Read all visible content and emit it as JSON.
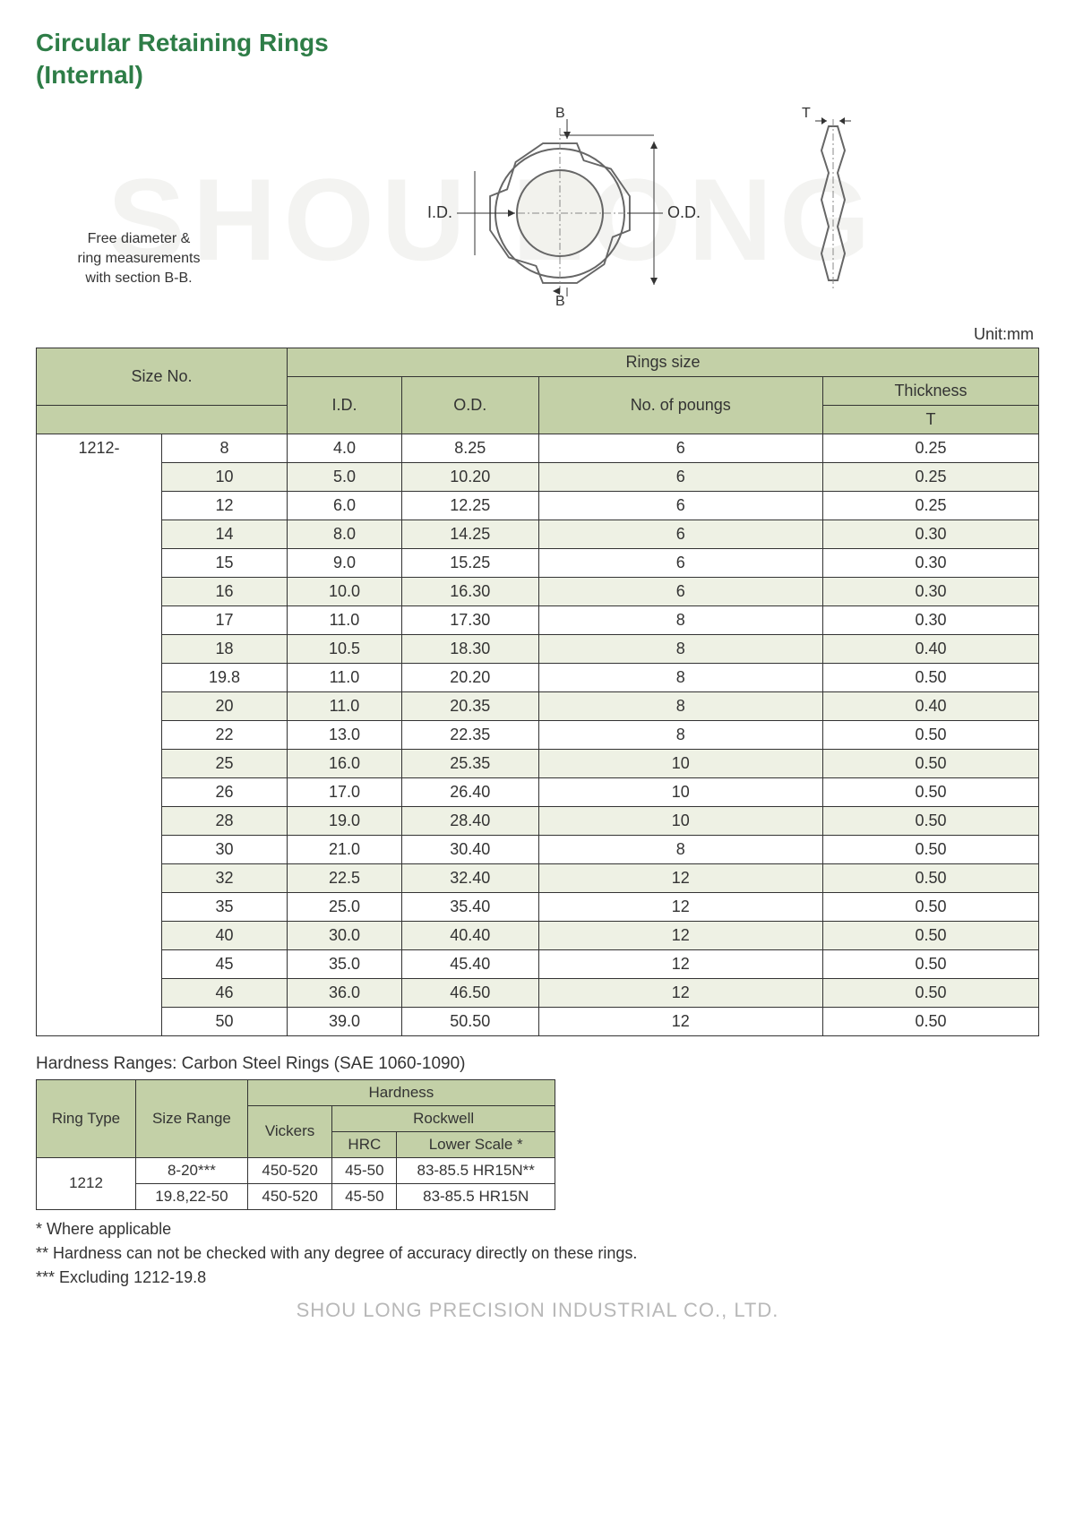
{
  "watermark": "SHOU LONG",
  "title_line1": "Circular Retaining Rings",
  "title_line2": "(Internal)",
  "caption_line1": "Free diameter &",
  "caption_line2": "ring measurements",
  "caption_line3": "with section B-B.",
  "diagram": {
    "label_id": "I.D.",
    "label_od": "O.D.",
    "label_b_top": "B",
    "label_b_bottom": "B",
    "label_t": "T",
    "outer_stroke": "#666666",
    "inner_fill": "#f5f5f0",
    "center_stroke": "#777777"
  },
  "unit_label": "Unit:mm",
  "main_table": {
    "headers": {
      "size_no": "Size No.",
      "rings_size": "Rings size",
      "id": "I.D.",
      "od": "O.D.",
      "poungs": "No. of poungs",
      "thickness": "Thickness",
      "t": "T"
    },
    "prefix": "1212-",
    "rows": [
      {
        "size": "8",
        "id": "4.0",
        "od": "8.25",
        "p": "6",
        "t": "0.25"
      },
      {
        "size": "10",
        "id": "5.0",
        "od": "10.20",
        "p": "6",
        "t": "0.25"
      },
      {
        "size": "12",
        "id": "6.0",
        "od": "12.25",
        "p": "6",
        "t": "0.25"
      },
      {
        "size": "14",
        "id": "8.0",
        "od": "14.25",
        "p": "6",
        "t": "0.30"
      },
      {
        "size": "15",
        "id": "9.0",
        "od": "15.25",
        "p": "6",
        "t": "0.30"
      },
      {
        "size": "16",
        "id": "10.0",
        "od": "16.30",
        "p": "6",
        "t": "0.30"
      },
      {
        "size": "17",
        "id": "11.0",
        "od": "17.30",
        "p": "8",
        "t": "0.30"
      },
      {
        "size": "18",
        "id": "10.5",
        "od": "18.30",
        "p": "8",
        "t": "0.40"
      },
      {
        "size": "19.8",
        "id": "11.0",
        "od": "20.20",
        "p": "8",
        "t": "0.50"
      },
      {
        "size": "20",
        "id": "11.0",
        "od": "20.35",
        "p": "8",
        "t": "0.40"
      },
      {
        "size": "22",
        "id": "13.0",
        "od": "22.35",
        "p": "8",
        "t": "0.50"
      },
      {
        "size": "25",
        "id": "16.0",
        "od": "25.35",
        "p": "10",
        "t": "0.50"
      },
      {
        "size": "26",
        "id": "17.0",
        "od": "26.40",
        "p": "10",
        "t": "0.50"
      },
      {
        "size": "28",
        "id": "19.0",
        "od": "28.40",
        "p": "10",
        "t": "0.50"
      },
      {
        "size": "30",
        "id": "21.0",
        "od": "30.40",
        "p": "8",
        "t": "0.50"
      },
      {
        "size": "32",
        "id": "22.5",
        "od": "32.40",
        "p": "12",
        "t": "0.50"
      },
      {
        "size": "35",
        "id": "25.0",
        "od": "35.40",
        "p": "12",
        "t": "0.50"
      },
      {
        "size": "40",
        "id": "30.0",
        "od": "40.40",
        "p": "12",
        "t": "0.50"
      },
      {
        "size": "45",
        "id": "35.0",
        "od": "45.40",
        "p": "12",
        "t": "0.50"
      },
      {
        "size": "46",
        "id": "36.0",
        "od": "46.50",
        "p": "12",
        "t": "0.50"
      },
      {
        "size": "50",
        "id": "39.0",
        "od": "50.50",
        "p": "12",
        "t": "0.50"
      }
    ],
    "header_bg": "#c3d0a7",
    "even_bg": "#eef1e4"
  },
  "hardness": {
    "title": "Hardness Ranges: Carbon Steel Rings (SAE 1060-1090)",
    "headers": {
      "ring_type": "Ring Type",
      "size_range": "Size Range",
      "hardness": "Hardness",
      "vickers": "Vickers",
      "rockwell": "Rockwell",
      "hrc": "HRC",
      "lower": "Lower Scale *"
    },
    "rows": [
      {
        "type": "1212",
        "range": "8-20***",
        "v": "450-520",
        "hrc": "45-50",
        "lower": "83-85.5 HR15N**"
      },
      {
        "type": "",
        "range": "19.8,22-50",
        "v": "450-520",
        "hrc": "45-50",
        "lower": "83-85.5 HR15N"
      }
    ]
  },
  "notes": {
    "n1": "* Where applicable",
    "n2": "** Hardness can not be checked with any degree of accuracy directly on these rings.",
    "n3": "*** Excluding 1212-19.8"
  },
  "footer": "SHOU LONG PRECISION INDUSTRIAL CO., LTD."
}
